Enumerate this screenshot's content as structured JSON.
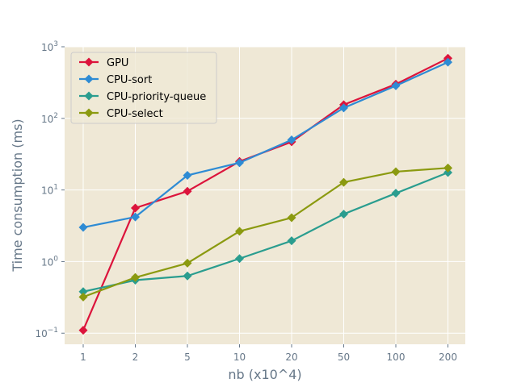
{
  "chart_data": {
    "type": "line",
    "title": "",
    "xlabel": "nb (x10^4)",
    "ylabel": "Time consumption (ms)",
    "x_categories": [
      "1",
      "2",
      "5",
      "10",
      "20",
      "50",
      "100",
      "200"
    ],
    "y_scale": "log",
    "ylim": [
      0.07,
      1000
    ],
    "y_ticks": [
      {
        "value": 0.1,
        "base": "10",
        "exp": "−1"
      },
      {
        "value": 1,
        "base": "10",
        "exp": "0"
      },
      {
        "value": 10,
        "base": "10",
        "exp": "1"
      },
      {
        "value": 100,
        "base": "10",
        "exp": "2"
      },
      {
        "value": 1000,
        "base": "10",
        "exp": "3"
      }
    ],
    "grid": true,
    "legend_position": "top-left",
    "background_color": "#efe8d6",
    "series": [
      {
        "name": "GPU",
        "color": "#dc143c",
        "values": [
          0.11,
          5.6,
          9.6,
          25,
          47,
          155,
          300,
          690
        ]
      },
      {
        "name": "CPU-sort",
        "color": "#2e8bd4",
        "values": [
          3.0,
          4.2,
          16,
          24,
          50,
          140,
          285,
          610
        ]
      },
      {
        "name": "CPU-priority-queue",
        "color": "#2a9d8f",
        "values": [
          0.38,
          0.55,
          0.63,
          1.1,
          1.95,
          4.6,
          9.0,
          17.5
        ]
      },
      {
        "name": "CPU-select",
        "color": "#8b9a10",
        "values": [
          0.32,
          0.6,
          0.95,
          2.65,
          4.1,
          12.8,
          18,
          20.3
        ]
      }
    ]
  }
}
